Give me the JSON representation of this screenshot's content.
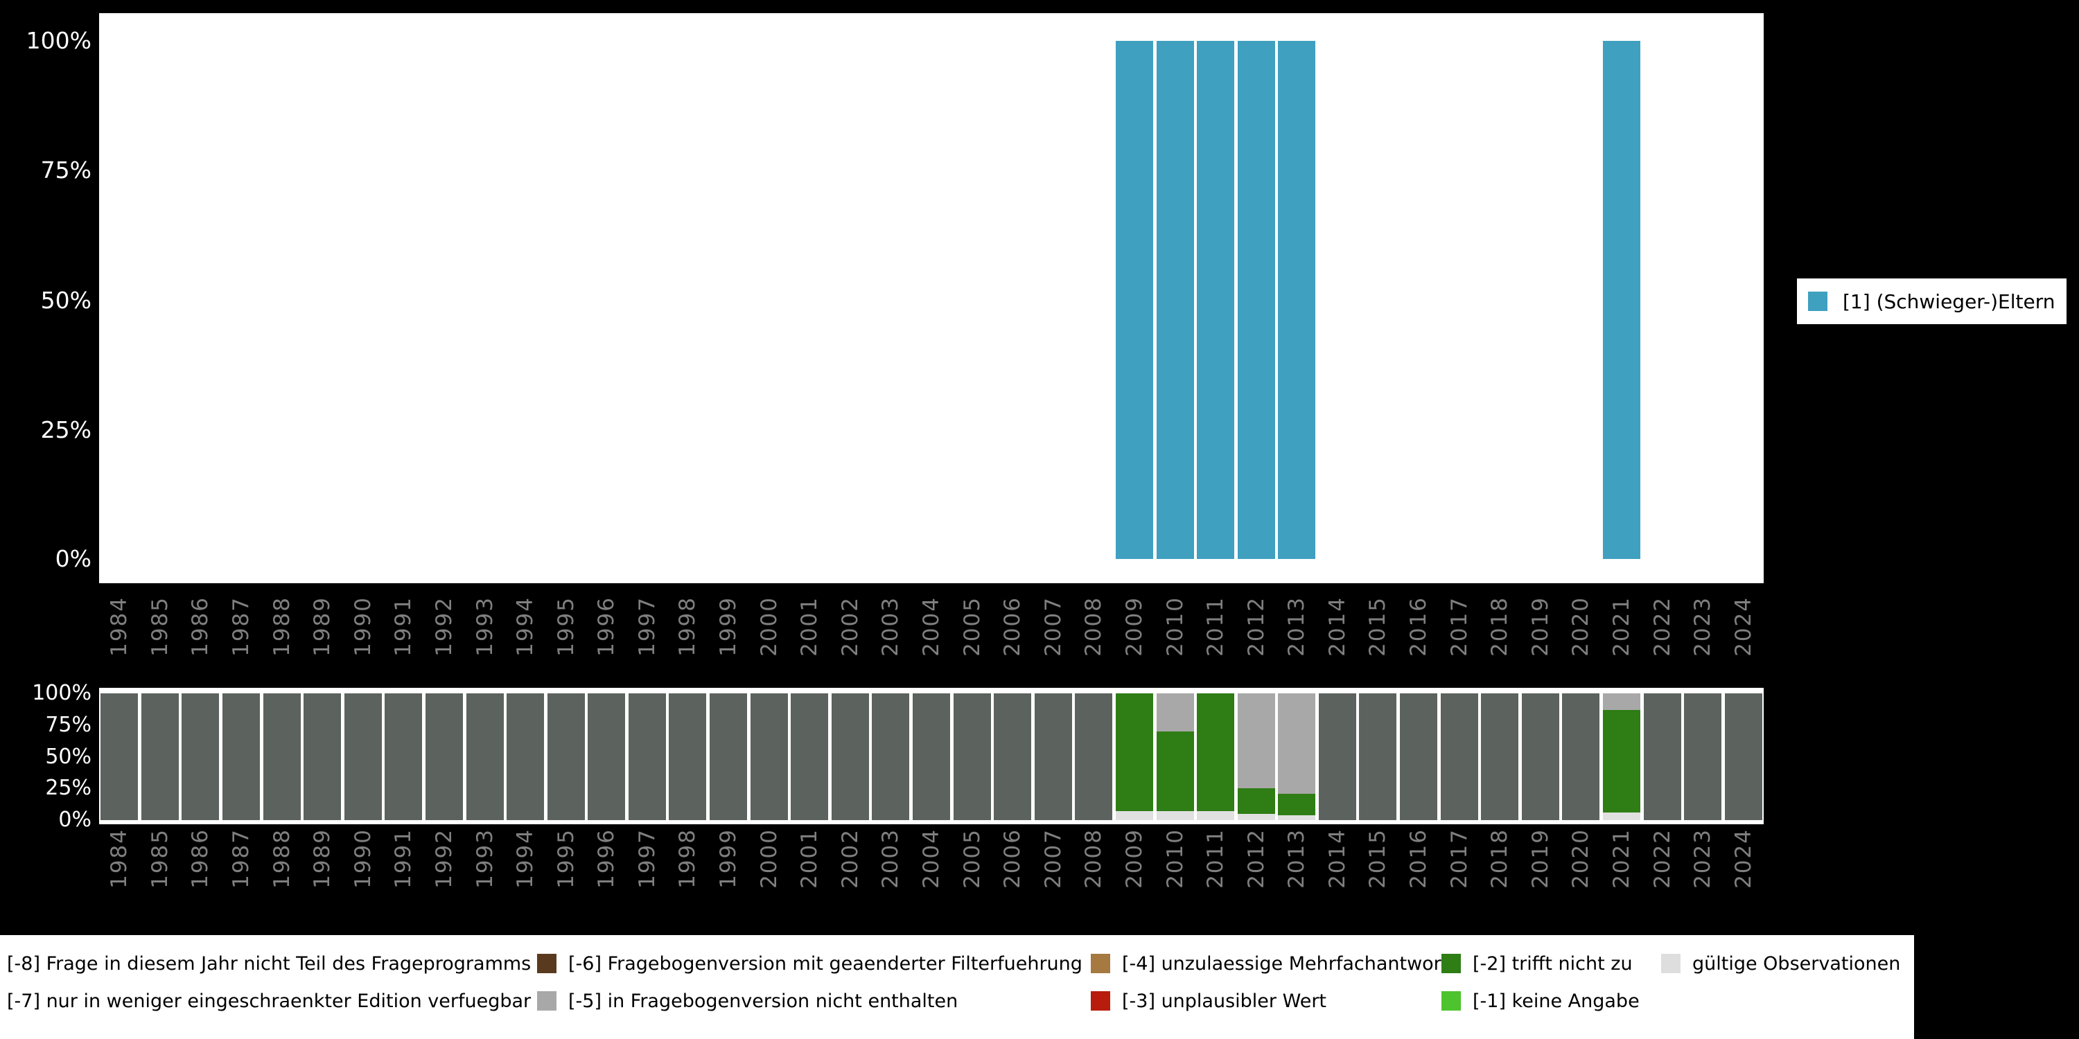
{
  "colors": {
    "page_bg": "#000000",
    "plot_bg": "#ffffff",
    "axis_year_text": "#7f7f7f",
    "axis_percent_text": "#ffffff",
    "series_teal": "#3FA0C0"
  },
  "chart_data": [
    {
      "type": "bar",
      "title": "",
      "categories": [
        "1984",
        "1985",
        "1986",
        "1987",
        "1988",
        "1989",
        "1990",
        "1991",
        "1992",
        "1993",
        "1994",
        "1995",
        "1996",
        "1997",
        "1998",
        "1999",
        "2000",
        "2001",
        "2002",
        "2003",
        "2004",
        "2005",
        "2006",
        "2007",
        "2008",
        "2009",
        "2010",
        "2011",
        "2012",
        "2013",
        "2014",
        "2015",
        "2016",
        "2017",
        "2018",
        "2019",
        "2020",
        "2021",
        "2022",
        "2023",
        "2024"
      ],
      "y_ticks": [
        "100%",
        "75%",
        "50%",
        "25%",
        "0%"
      ],
      "ylim": [
        0,
        100
      ],
      "grid": false,
      "legend": {
        "label": "[1] (Schwieger-)Eltern",
        "position": "right"
      },
      "series": [
        {
          "name": "[1] (Schwieger-)Eltern",
          "code": "1",
          "color": "#3FA0C0",
          "values": [
            0,
            0,
            0,
            0,
            0,
            0,
            0,
            0,
            0,
            0,
            0,
            0,
            0,
            0,
            0,
            0,
            0,
            0,
            0,
            0,
            0,
            0,
            0,
            0,
            0,
            100,
            100,
            100,
            100,
            100,
            0,
            0,
            0,
            0,
            0,
            0,
            0,
            100,
            0,
            0,
            0
          ]
        }
      ]
    },
    {
      "type": "bar",
      "stacked": true,
      "title": "",
      "categories": [
        "1984",
        "1985",
        "1986",
        "1987",
        "1988",
        "1989",
        "1990",
        "1991",
        "1992",
        "1993",
        "1994",
        "1995",
        "1996",
        "1997",
        "1998",
        "1999",
        "2000",
        "2001",
        "2002",
        "2003",
        "2004",
        "2005",
        "2006",
        "2007",
        "2008",
        "2009",
        "2010",
        "2011",
        "2012",
        "2013",
        "2014",
        "2015",
        "2016",
        "2017",
        "2018",
        "2019",
        "2020",
        "2021",
        "2022",
        "2023",
        "2024"
      ],
      "y_ticks": [
        "100%",
        "75%",
        "50%",
        "25%",
        "0%"
      ],
      "ylim": [
        0,
        100
      ],
      "grid": false,
      "series": [
        {
          "name": "gültige Observationen",
          "code": "valid",
          "color": "#E0E0E0",
          "values": [
            0,
            0,
            0,
            0,
            0,
            0,
            0,
            0,
            0,
            0,
            0,
            0,
            0,
            0,
            0,
            0,
            0,
            0,
            0,
            0,
            0,
            0,
            0,
            0,
            0,
            7,
            7,
            7,
            5,
            4,
            0,
            0,
            0,
            0,
            0,
            0,
            0,
            6,
            0,
            0,
            0
          ]
        },
        {
          "name": "[-2] trifft nicht zu",
          "code": "-2",
          "color": "#2E7D15",
          "values": [
            0,
            0,
            0,
            0,
            0,
            0,
            0,
            0,
            0,
            0,
            0,
            0,
            0,
            0,
            0,
            0,
            0,
            0,
            0,
            0,
            0,
            0,
            0,
            0,
            0,
            93,
            63,
            93,
            20,
            17,
            0,
            0,
            0,
            0,
            0,
            0,
            0,
            81,
            0,
            0,
            0
          ]
        },
        {
          "name": "[-5] in Fragebogenversion nicht enthalten",
          "code": "-5",
          "color": "#A8A8A8",
          "values": [
            0,
            0,
            0,
            0,
            0,
            0,
            0,
            0,
            0,
            0,
            0,
            0,
            0,
            0,
            0,
            0,
            0,
            0,
            0,
            0,
            0,
            0,
            0,
            0,
            0,
            0,
            30,
            0,
            75,
            79,
            0,
            0,
            0,
            0,
            0,
            0,
            0,
            13,
            0,
            0,
            0
          ]
        },
        {
          "name": "[-8] Frage in diesem Jahr nicht Teil des Frageprogramms",
          "code": "-8",
          "color": "#5C625E",
          "values": [
            100,
            100,
            100,
            100,
            100,
            100,
            100,
            100,
            100,
            100,
            100,
            100,
            100,
            100,
            100,
            100,
            100,
            100,
            100,
            100,
            100,
            100,
            100,
            100,
            100,
            0,
            0,
            0,
            0,
            0,
            100,
            100,
            100,
            100,
            100,
            100,
            100,
            0,
            100,
            100,
            100
          ]
        }
      ]
    }
  ],
  "codes_legend": {
    "rows": [
      [
        {
          "label": "[-8] Frage in diesem Jahr nicht Teil des Frageprogramms",
          "color": "#5C625E",
          "swatch_clipped": true
        },
        {
          "label": "[-6] Fragebogenversion mit geaenderter Filterfuehrung",
          "color": "#5A3A1E",
          "swatch_clipped": false
        },
        {
          "label": "[-4] unzulaessige Mehrfachantwort",
          "color": "#A5793F",
          "swatch_clipped": false
        },
        {
          "label": "[-2] trifft nicht zu",
          "color": "#2E7D15",
          "swatch_clipped": false
        },
        {
          "label": "gültige Observationen",
          "color": "#DEDEDE",
          "swatch_clipped": false
        }
      ],
      [
        {
          "label": "[-7] nur in weniger eingeschraenkter Edition verfuegbar",
          "color": "#8C8C8C",
          "swatch_clipped": true
        },
        {
          "label": "[-5] in Fragebogenversion nicht enthalten",
          "color": "#A8A8A8",
          "swatch_clipped": false
        },
        {
          "label": "[-3] unplausibler Wert",
          "color": "#B71C0C",
          "swatch_clipped": false
        },
        {
          "label": "[-1] keine Angabe",
          "color": "#4DC32E",
          "swatch_clipped": false
        }
      ]
    ]
  }
}
